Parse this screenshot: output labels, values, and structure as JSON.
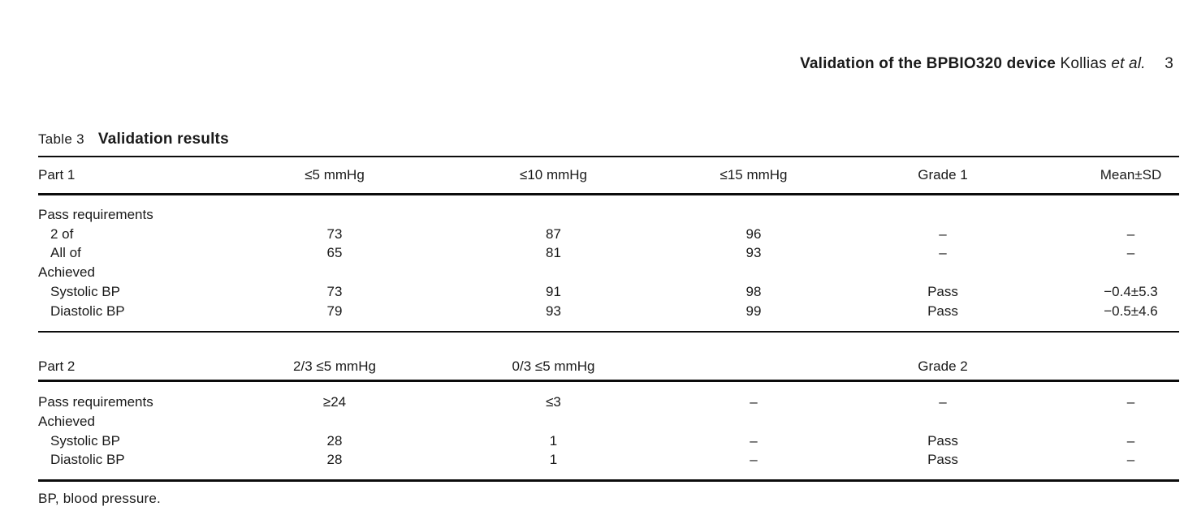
{
  "header": {
    "article_title": "Validation of the BPBIO320 device",
    "author": "Kollias",
    "et_al": "et al.",
    "page_number": "3"
  },
  "caption": {
    "label": "Table 3",
    "title": "Validation results"
  },
  "footnote": "BP, blood pressure.",
  "table": {
    "part1": {
      "columns": [
        "Part 1",
        "≤5 mmHg",
        "≤10 mmHg",
        "≤15 mmHg",
        "Grade 1",
        "Mean±SD"
      ],
      "rows": [
        {
          "label": "Pass requirements",
          "indent": false,
          "cells": [
            "",
            "",
            "",
            "",
            ""
          ]
        },
        {
          "label": "2 of",
          "indent": true,
          "cells": [
            "73",
            "87",
            "96",
            "–",
            "–"
          ]
        },
        {
          "label": "All of",
          "indent": true,
          "cells": [
            "65",
            "81",
            "93",
            "–",
            "–"
          ]
        },
        {
          "label": "Achieved",
          "indent": false,
          "cells": [
            "",
            "",
            "",
            "",
            ""
          ]
        },
        {
          "label": "Systolic BP",
          "indent": true,
          "cells": [
            "73",
            "91",
            "98",
            "Pass",
            "−0.4±5.3"
          ]
        },
        {
          "label": "Diastolic BP",
          "indent": true,
          "cells": [
            "79",
            "93",
            "99",
            "Pass",
            "−0.5±4.6"
          ]
        }
      ]
    },
    "part2": {
      "columns": [
        "Part 2",
        "2/3 ≤5 mmHg",
        "0/3 ≤5 mmHg",
        "",
        "Grade 2",
        ""
      ],
      "rows": [
        {
          "label": "Pass requirements",
          "indent": false,
          "cells": [
            "≥24",
            "≤3",
            "–",
            "–",
            "–"
          ]
        },
        {
          "label": "Achieved",
          "indent": false,
          "cells": [
            "",
            "",
            "",
            "",
            ""
          ]
        },
        {
          "label": "Systolic BP",
          "indent": true,
          "cells": [
            "28",
            "1",
            "–",
            "Pass",
            "–"
          ]
        },
        {
          "label": "Diastolic BP",
          "indent": true,
          "cells": [
            "28",
            "1",
            "–",
            "Pass",
            "–"
          ]
        }
      ]
    }
  }
}
